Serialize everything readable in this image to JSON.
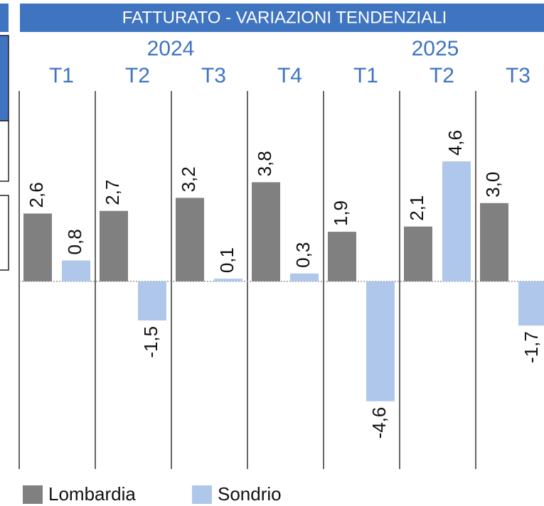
{
  "chart_data": {
    "type": "bar",
    "title": "FATTURATO - VARIAZIONI TENDENZIALI",
    "years": [
      "2024",
      "2025"
    ],
    "categories": [
      "T1",
      "T2",
      "T3",
      "T4",
      "T1",
      "T2",
      "T3"
    ],
    "series": [
      {
        "name": "Lombardia",
        "color": "#808080",
        "values": [
          2.6,
          2.7,
          3.2,
          3.8,
          1.9,
          2.1,
          3.0
        ],
        "value_labels": [
          "2,6",
          "2,7",
          "3,2",
          "3,8",
          "1,9",
          "2,1",
          "3,0"
        ]
      },
      {
        "name": "Sondrio",
        "color": "#aec7ea",
        "values": [
          0.8,
          -1.5,
          0.1,
          0.3,
          -4.6,
          4.6,
          -1.7
        ],
        "value_labels": [
          "0,8",
          "-1,5",
          "0,1",
          "0,3",
          "-4,6",
          "4,6",
          "-1,7"
        ]
      }
    ],
    "ylim": [
      -7.2,
      7.3
    ]
  }
}
